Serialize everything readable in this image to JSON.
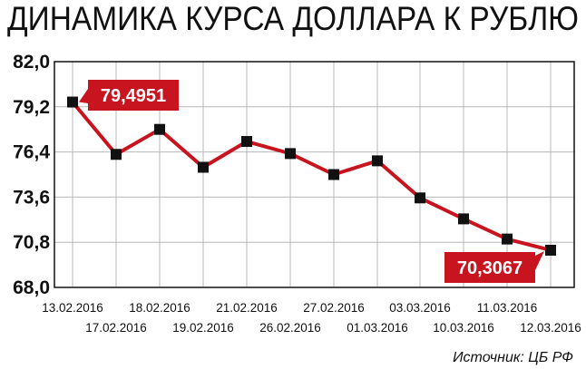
{
  "chart_data": {
    "type": "line",
    "title": "ДИНАМИКА КУРСА ДОЛЛАРА К РУБЛЮ",
    "source": "Источник: ЦБ РФ",
    "xlabel": "",
    "ylabel": "",
    "ylim": [
      68.0,
      82.0
    ],
    "yticks": [
      "68,0",
      "70,8",
      "73,6",
      "76,4",
      "79,2",
      "82,0"
    ],
    "categories": [
      "13.02.2016",
      "17.02.2016",
      "18.02.2016",
      "19.02.2016",
      "21.02.2016",
      "26.02.2016",
      "27.02.2016",
      "01.03.2016",
      "03.03.2016",
      "10.03.2016",
      "11.03.2016",
      "12.03.2016"
    ],
    "values": [
      79.4951,
      76.25,
      77.8,
      75.45,
      77.05,
      76.3,
      75.0,
      75.85,
      73.55,
      72.25,
      71.0,
      70.3067
    ],
    "annotations": [
      {
        "index": 0,
        "text": "79,4951"
      },
      {
        "index": 11,
        "text": "70,3067"
      }
    ],
    "grid": true,
    "colors": {
      "line": "#c8141e",
      "marker": "#111111",
      "callout": "#c8141e",
      "grid": "#b8b8b8"
    }
  }
}
